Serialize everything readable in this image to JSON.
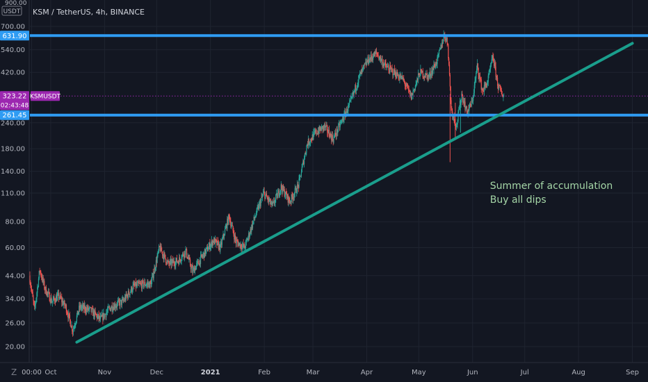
{
  "chart_data": {
    "type": "candlestick",
    "title": "KSM / TetherUS, 4h, BINANCE",
    "currency": "USDT",
    "scale": "log",
    "y_ticks": [
      20,
      26,
      34,
      44,
      60,
      80,
      110,
      140,
      180,
      240,
      420,
      540,
      700,
      900
    ],
    "y_tick_labels": [
      "20.00",
      "26.00",
      "34.00",
      "44.00",
      "60.00",
      "80.00",
      "110.00",
      "140.00",
      "180.00",
      "240.00",
      "420.00",
      "540.00",
      "700.00",
      "900.00"
    ],
    "x_range": [
      "2020-09-19",
      "2021-09-10"
    ],
    "x_ticks": [
      {
        "date": "2020-09-20",
        "label": "00:00"
      },
      {
        "date": "2020-10-01",
        "label": "Oct"
      },
      {
        "date": "2020-11-01",
        "label": "Nov"
      },
      {
        "date": "2020-12-01",
        "label": "Dec"
      },
      {
        "date": "2021-01-01",
        "label": "2021",
        "bold": true
      },
      {
        "date": "2021-02-01",
        "label": "Feb"
      },
      {
        "date": "2021-03-01",
        "label": "Mar"
      },
      {
        "date": "2021-04-01",
        "label": "Apr"
      },
      {
        "date": "2021-05-01",
        "label": "May"
      },
      {
        "date": "2021-06-01",
        "label": "Jun"
      },
      {
        "date": "2021-07-01",
        "label": "Jul"
      },
      {
        "date": "2021-08-01",
        "label": "Aug"
      },
      {
        "date": "2021-09-01",
        "label": "Sep"
      }
    ],
    "price_path": [
      [
        "2020-09-19",
        44
      ],
      [
        "2020-09-22",
        30
      ],
      [
        "2020-09-25",
        47
      ],
      [
        "2020-09-28",
        38
      ],
      [
        "2020-10-02",
        33
      ],
      [
        "2020-10-06",
        35
      ],
      [
        "2020-10-10",
        31
      ],
      [
        "2020-10-14",
        24
      ],
      [
        "2020-10-18",
        31
      ],
      [
        "2020-10-24",
        30
      ],
      [
        "2020-10-30",
        27
      ],
      [
        "2020-11-05",
        31
      ],
      [
        "2020-11-12",
        33
      ],
      [
        "2020-11-18",
        39
      ],
      [
        "2020-11-24",
        40
      ],
      [
        "2020-11-28",
        40
      ],
      [
        "2020-12-03",
        60
      ],
      [
        "2020-12-08",
        50
      ],
      [
        "2020-12-14",
        52
      ],
      [
        "2020-12-18",
        58
      ],
      [
        "2020-12-22",
        46
      ],
      [
        "2020-12-28",
        55
      ],
      [
        "2021-01-03",
        65
      ],
      [
        "2021-01-07",
        60
      ],
      [
        "2021-01-12",
        85
      ],
      [
        "2021-01-16",
        64
      ],
      [
        "2021-01-21",
        60
      ],
      [
        "2021-01-26",
        80
      ],
      [
        "2021-02-01",
        110
      ],
      [
        "2021-02-06",
        95
      ],
      [
        "2021-02-11",
        118
      ],
      [
        "2021-02-16",
        100
      ],
      [
        "2021-02-21",
        120
      ],
      [
        "2021-02-26",
        190
      ],
      [
        "2021-03-03",
        215
      ],
      [
        "2021-03-08",
        230
      ],
      [
        "2021-03-13",
        200
      ],
      [
        "2021-03-18",
        245
      ],
      [
        "2021-03-23",
        300
      ],
      [
        "2021-03-28",
        400
      ],
      [
        "2021-04-02",
        480
      ],
      [
        "2021-04-07",
        520
      ],
      [
        "2021-04-12",
        450
      ],
      [
        "2021-04-17",
        420
      ],
      [
        "2021-04-22",
        390
      ],
      [
        "2021-04-27",
        320
      ],
      [
        "2021-05-02",
        420
      ],
      [
        "2021-05-07",
        400
      ],
      [
        "2021-05-12",
        480
      ],
      [
        "2021-05-16",
        640
      ],
      [
        "2021-05-18",
        580
      ],
      [
        "2021-05-20",
        280
      ],
      [
        "2021-05-23",
        230
      ],
      [
        "2021-05-26",
        330
      ],
      [
        "2021-05-29",
        270
      ],
      [
        "2021-06-01",
        300
      ],
      [
        "2021-06-04",
        450
      ],
      [
        "2021-06-07",
        340
      ],
      [
        "2021-06-10",
        380
      ],
      [
        "2021-06-13",
        500
      ],
      [
        "2021-06-16",
        360
      ],
      [
        "2021-06-19",
        323
      ]
    ],
    "horizontal_levels": [
      {
        "price": 631.9,
        "label": "631.90",
        "color": "#2f9cf3"
      },
      {
        "price": 261.45,
        "label": "261.45",
        "color": "#2f9cf3"
      }
    ],
    "current_price": {
      "price": 323.22,
      "label": "323.22",
      "countdown": "02:43:48",
      "symbol": "KSMUSDT",
      "color": "#9c27b0"
    },
    "trendline": {
      "start": [
        "2020-10-16",
        21
      ],
      "end": [
        "2021-09-01",
        580
      ],
      "color": "#1a9e8c"
    },
    "annotation": {
      "lines": [
        "Summer of accumulation",
        "Buy all dips"
      ],
      "anchor": [
        "2021-06-11",
        115
      ],
      "color": "#a5d6a7"
    },
    "colors": {
      "background": "#131722",
      "grid": "#1f2430",
      "up": "#26a69a",
      "down": "#ef5350",
      "axis_text": "#b2b5be"
    }
  },
  "header": {
    "title": "KSM / TetherUS, 4h, BINANCE"
  },
  "y_axis_top": {
    "price": "900.00",
    "currency": "USDT"
  },
  "logo": "Z"
}
